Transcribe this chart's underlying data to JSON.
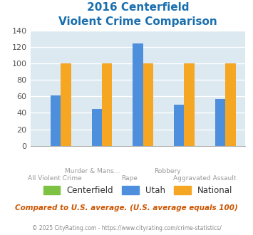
{
  "title_line1": "2016 Centerfield",
  "title_line2": "Violent Crime Comparison",
  "top_labels": [
    "",
    "Murder & Mans...",
    "",
    "Robbery",
    ""
  ],
  "bottom_labels": [
    "All Violent Crime",
    "",
    "Rape",
    "",
    "Aggravated Assault"
  ],
  "series": {
    "Centerfield": [
      0,
      0,
      0,
      0,
      0
    ],
    "Utah": [
      61,
      45,
      124,
      50,
      57
    ],
    "National": [
      100,
      100,
      100,
      100,
      100
    ]
  },
  "colors": {
    "Centerfield": "#7dc242",
    "Utah": "#4d8fdc",
    "National": "#f5a623"
  },
  "ylim": [
    0,
    140
  ],
  "yticks": [
    0,
    20,
    40,
    60,
    80,
    100,
    120,
    140
  ],
  "title_color": "#1a6faf",
  "plot_bg": "#dce9f0",
  "grid_color": "#ffffff",
  "xlabel_color": "#999999",
  "legend_label_color": "#333333",
  "footer_text": "Compared to U.S. average. (U.S. average equals 100)",
  "footer_color": "#cc5500",
  "credit_text": "© 2025 CityRating.com - https://www.cityrating.com/crime-statistics/",
  "credit_color": "#888888",
  "bar_width": 0.25
}
